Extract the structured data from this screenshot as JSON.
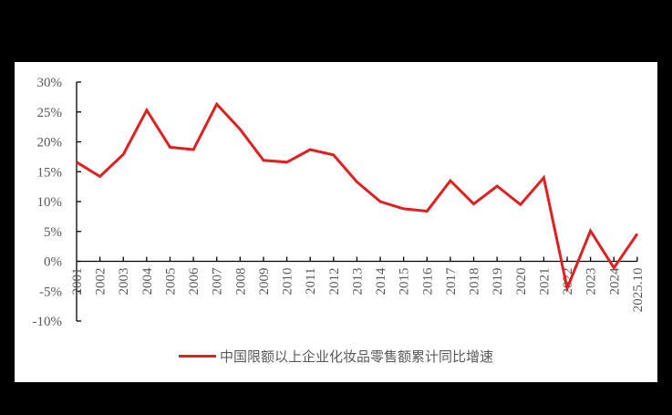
{
  "chart_data": {
    "type": "line",
    "title": "",
    "xlabel": "",
    "ylabel": "",
    "categories": [
      "2001",
      "2002",
      "2003",
      "2004",
      "2005",
      "2006",
      "2007",
      "2008",
      "2009",
      "2010",
      "2011",
      "2012",
      "2013",
      "2014",
      "2015",
      "2016",
      "2017",
      "2018",
      "2019",
      "2020",
      "2021",
      "2022",
      "2023",
      "2024",
      "2025.10"
    ],
    "series": [
      {
        "name": "中国限额以上企业化妆品零售额累计同比增速",
        "color": "#e02020",
        "values": [
          16.6,
          14.2,
          17.9,
          25.3,
          19.1,
          18.7,
          26.3,
          22.1,
          16.9,
          16.6,
          18.7,
          17.8,
          13.3,
          10.0,
          8.8,
          8.4,
          13.5,
          9.6,
          12.6,
          9.5,
          14.0,
          -4.5,
          5.1,
          -1.1,
          4.6
        ]
      }
    ],
    "ylim": [
      -10,
      30
    ],
    "yticks": [
      30,
      25,
      20,
      15,
      10,
      5,
      0,
      -5,
      -10
    ],
    "ytick_labels": [
      "30%",
      "25%",
      "20%",
      "15%",
      "10%",
      "5%",
      "0%",
      "-5%",
      "-10%"
    ],
    "grid": false,
    "legend_position": "bottom"
  },
  "legend": {
    "label": "中国限额以上企业化妆品零售额累计同比增速",
    "color": "#e02020"
  }
}
